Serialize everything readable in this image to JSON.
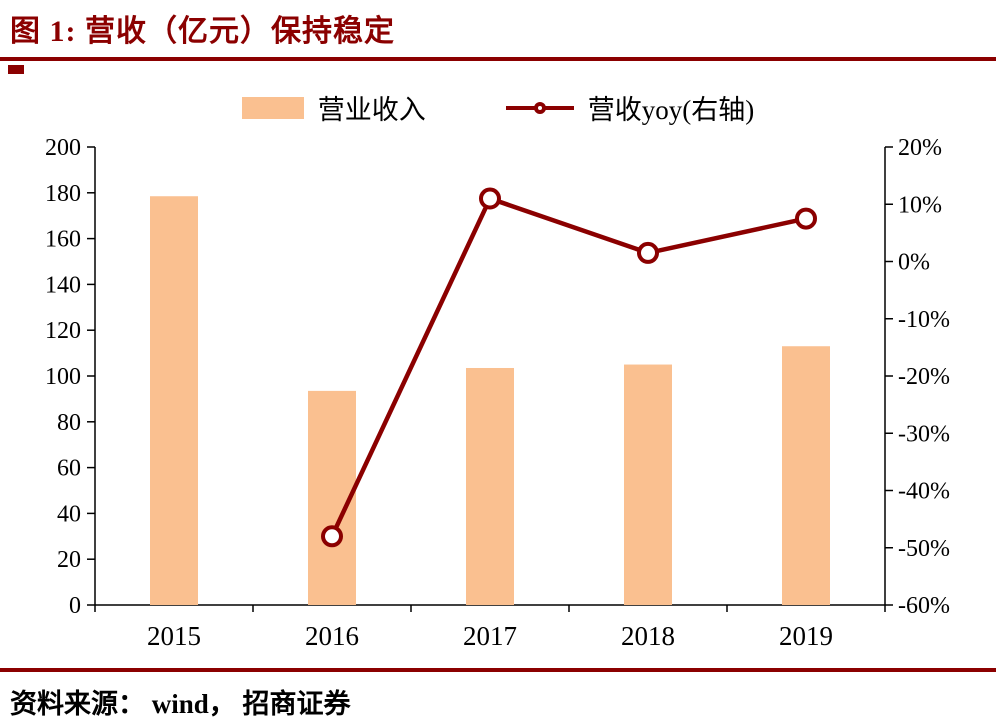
{
  "title": "图 1:  营收（亿元）保持稳定",
  "source": "资料来源： wind， 招商证券",
  "colors": {
    "accent": "#8B0000",
    "bar": "#FAC090",
    "line": "#8B0000",
    "marker_fill": "#FFFFFF",
    "axis": "#000000",
    "text": "#000000"
  },
  "legend": [
    {
      "label": "营业收入",
      "type": "bar"
    },
    {
      "label": "营收yoy(右轴)",
      "type": "line"
    }
  ],
  "chart_data": {
    "type": "bar+line",
    "title": "图 1:  营收（亿元）保持稳定",
    "categories": [
      "2015",
      "2016",
      "2017",
      "2018",
      "2019"
    ],
    "series": [
      {
        "name": "营业收入",
        "type": "bar",
        "axis": "left",
        "values": [
          178.5,
          93.5,
          103.5,
          105,
          113
        ]
      },
      {
        "name": "营收yoy(右轴)",
        "type": "line",
        "axis": "right",
        "values": [
          null,
          -48,
          11,
          1.5,
          7.5
        ]
      }
    ],
    "left_axis": {
      "min": 0,
      "max": 200,
      "step": 20,
      "ticks": [
        "200",
        "180",
        "160",
        "140",
        "120",
        "100",
        "80",
        "60",
        "40",
        "20",
        "0"
      ]
    },
    "right_axis": {
      "min": -60,
      "max": 20,
      "step": 10,
      "ticks": [
        "20%",
        "10%",
        "0%",
        "-10%",
        "-20%",
        "-30%",
        "-40%",
        "-50%",
        "-60%"
      ]
    },
    "grid": false,
    "legend_position": "top"
  }
}
